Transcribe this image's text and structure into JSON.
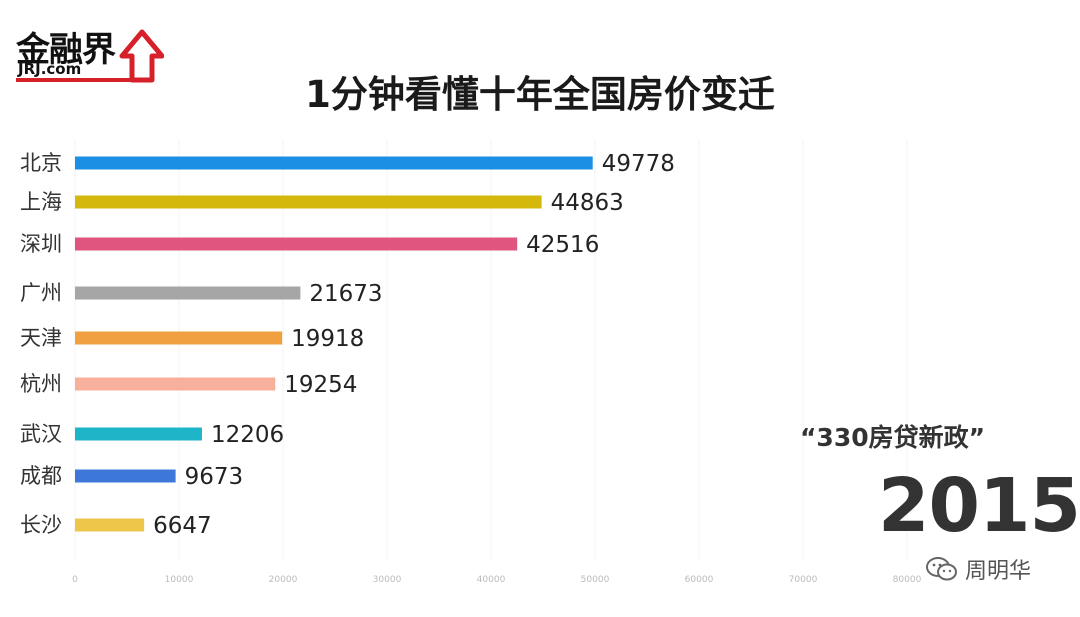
{
  "logo": {
    "text_cn": "金融界",
    "text_en": "JRJ.com"
  },
  "title": "1分钟看懂十年全国房价变迁",
  "policy_label": "“330房贷新政”",
  "year": "2015",
  "watermark": "周明华",
  "colors": {
    "logo_red": "#d6202a"
  },
  "chart_data": {
    "type": "bar",
    "orientation": "horizontal",
    "title": "1分钟看懂十年全国房价变迁",
    "xlim": [
      0,
      80000
    ],
    "xticks": [
      0,
      10000,
      20000,
      30000,
      40000,
      50000,
      60000,
      70000,
      80000
    ],
    "grid": true,
    "categories": [
      "北京",
      "上海",
      "深圳",
      "广州",
      "天津",
      "杭州",
      "武汉",
      "成都",
      "长沙"
    ],
    "values": [
      49778,
      44863,
      42516,
      21673,
      19918,
      19254,
      12206,
      9673,
      6647
    ],
    "colors": [
      "#1a8fe3",
      "#d4b90c",
      "#e05580",
      "#a6a6a6",
      "#f0a040",
      "#f6b09c",
      "#1eb5c8",
      "#3d78d8",
      "#eec64a"
    ]
  }
}
